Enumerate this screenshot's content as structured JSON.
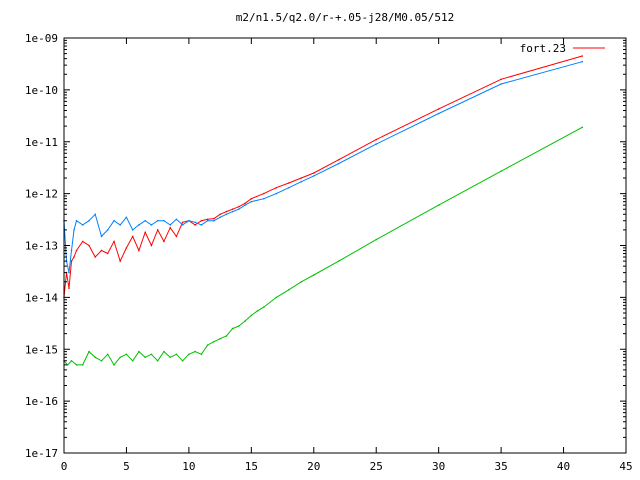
{
  "chart_data": {
    "type": "line",
    "title": "m2/n1.5/q2.0/r-+.05-j28/M0.05/512",
    "xlabel": "",
    "ylabel": "",
    "xlim": [
      0,
      45
    ],
    "ylim": [
      1e-17,
      1e-09
    ],
    "yscale": "log",
    "grid": false,
    "legend_position": "top-right",
    "x_ticks": [
      "0",
      "5",
      "10",
      "15",
      "20",
      "25",
      "30",
      "35",
      "40",
      "45"
    ],
    "y_ticks": [
      "1e-17",
      "1e-16",
      "1e-15",
      "1e-14",
      "1e-13",
      "1e-12",
      "1e-11",
      "1e-10",
      "1e-09"
    ],
    "series": [
      {
        "name": "fort.23",
        "color": "#ff0000",
        "x": [
          0.0,
          0.2,
          0.4,
          0.6,
          0.8,
          1.0,
          1.5,
          2.0,
          2.5,
          3.0,
          3.5,
          4.0,
          4.5,
          5.0,
          5.5,
          6.0,
          6.5,
          7.0,
          7.5,
          8.0,
          8.5,
          9.0,
          9.5,
          10.0,
          10.5,
          11.0,
          11.5,
          12.0,
          12.5,
          13.0,
          13.5,
          14.0,
          14.5,
          15.0,
          16.0,
          17.0,
          18.0,
          19.0,
          20.0,
          22.0,
          25.0,
          30.0,
          35.0,
          41.5
        ],
        "y": [
          1e-14,
          3e-14,
          1.5e-14,
          5e-14,
          6e-14,
          8e-14,
          1.2e-13,
          1e-13,
          6e-14,
          8e-14,
          7e-14,
          1.2e-13,
          5e-14,
          9e-14,
          1.5e-13,
          8e-14,
          1.8e-13,
          1e-13,
          2e-13,
          1.2e-13,
          2.2e-13,
          1.5e-13,
          2.8e-13,
          3e-13,
          2.5e-13,
          3e-13,
          3.2e-13,
          3.3e-13,
          4e-13,
          4.5e-13,
          5e-13,
          5.6e-13,
          6.5e-13,
          8e-13,
          1e-12,
          1.3e-12,
          1.6e-12,
          2e-12,
          2.5e-12,
          4.5e-12,
          1.1e-11,
          4.3e-11,
          1.6e-10,
          4.5e-10
        ]
      },
      {
        "color": "#0080ff",
        "x": [
          0.0,
          0.2,
          0.4,
          0.6,
          0.8,
          1.0,
          1.5,
          2.0,
          2.5,
          3.0,
          3.5,
          4.0,
          4.5,
          5.0,
          5.5,
          6.0,
          6.5,
          7.0,
          7.5,
          8.0,
          8.5,
          9.0,
          9.5,
          10.0,
          10.5,
          11.0,
          11.5,
          12.0,
          12.5,
          13.0,
          13.5,
          14.0,
          14.5,
          15.0,
          16.0,
          17.0,
          18.0,
          19.0,
          20.0,
          22.0,
          25.0,
          30.0,
          35.0,
          41.5
        ],
        "y": [
          3e-13,
          5e-14,
          3e-14,
          8e-14,
          2e-13,
          3e-13,
          2.5e-13,
          3e-13,
          4e-13,
          1.5e-13,
          2e-13,
          3e-13,
          2.5e-13,
          3.5e-13,
          2e-13,
          2.5e-13,
          3e-13,
          2.5e-13,
          3e-13,
          3e-13,
          2.5e-13,
          3.2e-13,
          2.5e-13,
          3e-13,
          2.8e-13,
          2.5e-13,
          3e-13,
          3e-13,
          3.5e-13,
          4e-13,
          4.5e-13,
          5e-13,
          6e-13,
          7e-13,
          8e-13,
          1e-12,
          1.3e-12,
          1.7e-12,
          2.2e-12,
          3.8e-12,
          9e-12,
          3.5e-11,
          1.3e-10,
          3.5e-10
        ]
      },
      {
        "color": "#00c000",
        "x": [
          0.0,
          0.3,
          0.6,
          1.0,
          1.5,
          2.0,
          2.5,
          3.0,
          3.5,
          4.0,
          4.5,
          5.0,
          5.5,
          6.0,
          6.5,
          7.0,
          7.5,
          8.0,
          8.5,
          9.0,
          9.5,
          10.0,
          10.5,
          11.0,
          11.5,
          12.0,
          12.5,
          13.0,
          13.5,
          14.0,
          14.5,
          15.0,
          15.5,
          16.0,
          17.0,
          18.0,
          19.0,
          20.0,
          22.0,
          25.0,
          30.0,
          35.0,
          41.5
        ],
        "y": [
          6e-16,
          5e-16,
          6e-16,
          5e-16,
          5e-16,
          9e-16,
          7e-16,
          6e-16,
          8e-16,
          5e-16,
          7e-16,
          8e-16,
          6e-16,
          9e-16,
          7e-16,
          8e-16,
          6e-16,
          9e-16,
          7e-16,
          8e-16,
          6e-16,
          8e-16,
          9e-16,
          8e-16,
          1.2e-15,
          1.4e-15,
          1.6e-15,
          1.8e-15,
          2.5e-15,
          2.8e-15,
          3.5e-15,
          4.5e-15,
          5.5e-15,
          6.5e-15,
          1e-14,
          1.4e-14,
          2e-14,
          2.7e-14,
          5e-14,
          1.3e-13,
          6e-13,
          2.7e-12,
          1.9e-11
        ]
      }
    ]
  }
}
